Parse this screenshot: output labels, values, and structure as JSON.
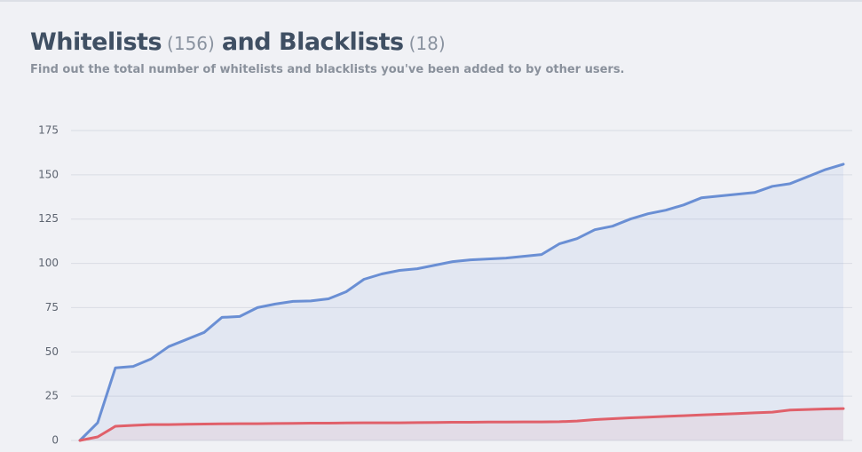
{
  "header": {
    "whitelists": "Whitelists",
    "whitelist_count": "(156)",
    "blacklists": "and Blacklists",
    "blacklist_count": "(18)",
    "subtitle": "Find out the total number of whitelists and blacklists you've been added to by other users."
  },
  "chart_data": {
    "type": "area",
    "categories": [
      null,
      null,
      null,
      null,
      null,
      null,
      null,
      null,
      null,
      null,
      null,
      null,
      null,
      null,
      null,
      null,
      null,
      null,
      null,
      null,
      null,
      null,
      null,
      null,
      null,
      null,
      null,
      null,
      null,
      null,
      null,
      null,
      null,
      null,
      null,
      null,
      null,
      null,
      null,
      null,
      null,
      null,
      null,
      null
    ],
    "series": [
      {
        "color": "#6a8fd4",
        "fill": "rgba(106,143,212,0.10)",
        "values": [
          0,
          10,
          41,
          41.8,
          46,
          53,
          57,
          61,
          69.5,
          70,
          75,
          77,
          78.5,
          78.8,
          80,
          84,
          91,
          94,
          96,
          97,
          99,
          101,
          102,
          102.5,
          103,
          104,
          105,
          111,
          114,
          119,
          121,
          125,
          128,
          130,
          133,
          137,
          138,
          139,
          140,
          143.5,
          145,
          149,
          153,
          156
        ]
      },
      {
        "color": "#e0606a",
        "fill": "rgba(224,96,106,0.08)",
        "values": [
          0,
          2,
          8,
          8.5,
          9,
          9,
          9.2,
          9.3,
          9.4,
          9.5,
          9.5,
          9.6,
          9.7,
          9.8,
          9.8,
          9.9,
          10,
          10,
          10,
          10.1,
          10.2,
          10.3,
          10.3,
          10.4,
          10.4,
          10.5,
          10.5,
          10.6,
          11,
          11.8,
          12.3,
          12.8,
          13.2,
          13.6,
          14,
          14.4,
          14.8,
          15.2,
          15.6,
          16,
          17.2,
          17.5,
          17.8,
          18
        ]
      }
    ],
    "ylim": [
      0,
      175
    ],
    "yticks": [
      0,
      25,
      50,
      75,
      100,
      125,
      150,
      175
    ],
    "grid": true
  }
}
